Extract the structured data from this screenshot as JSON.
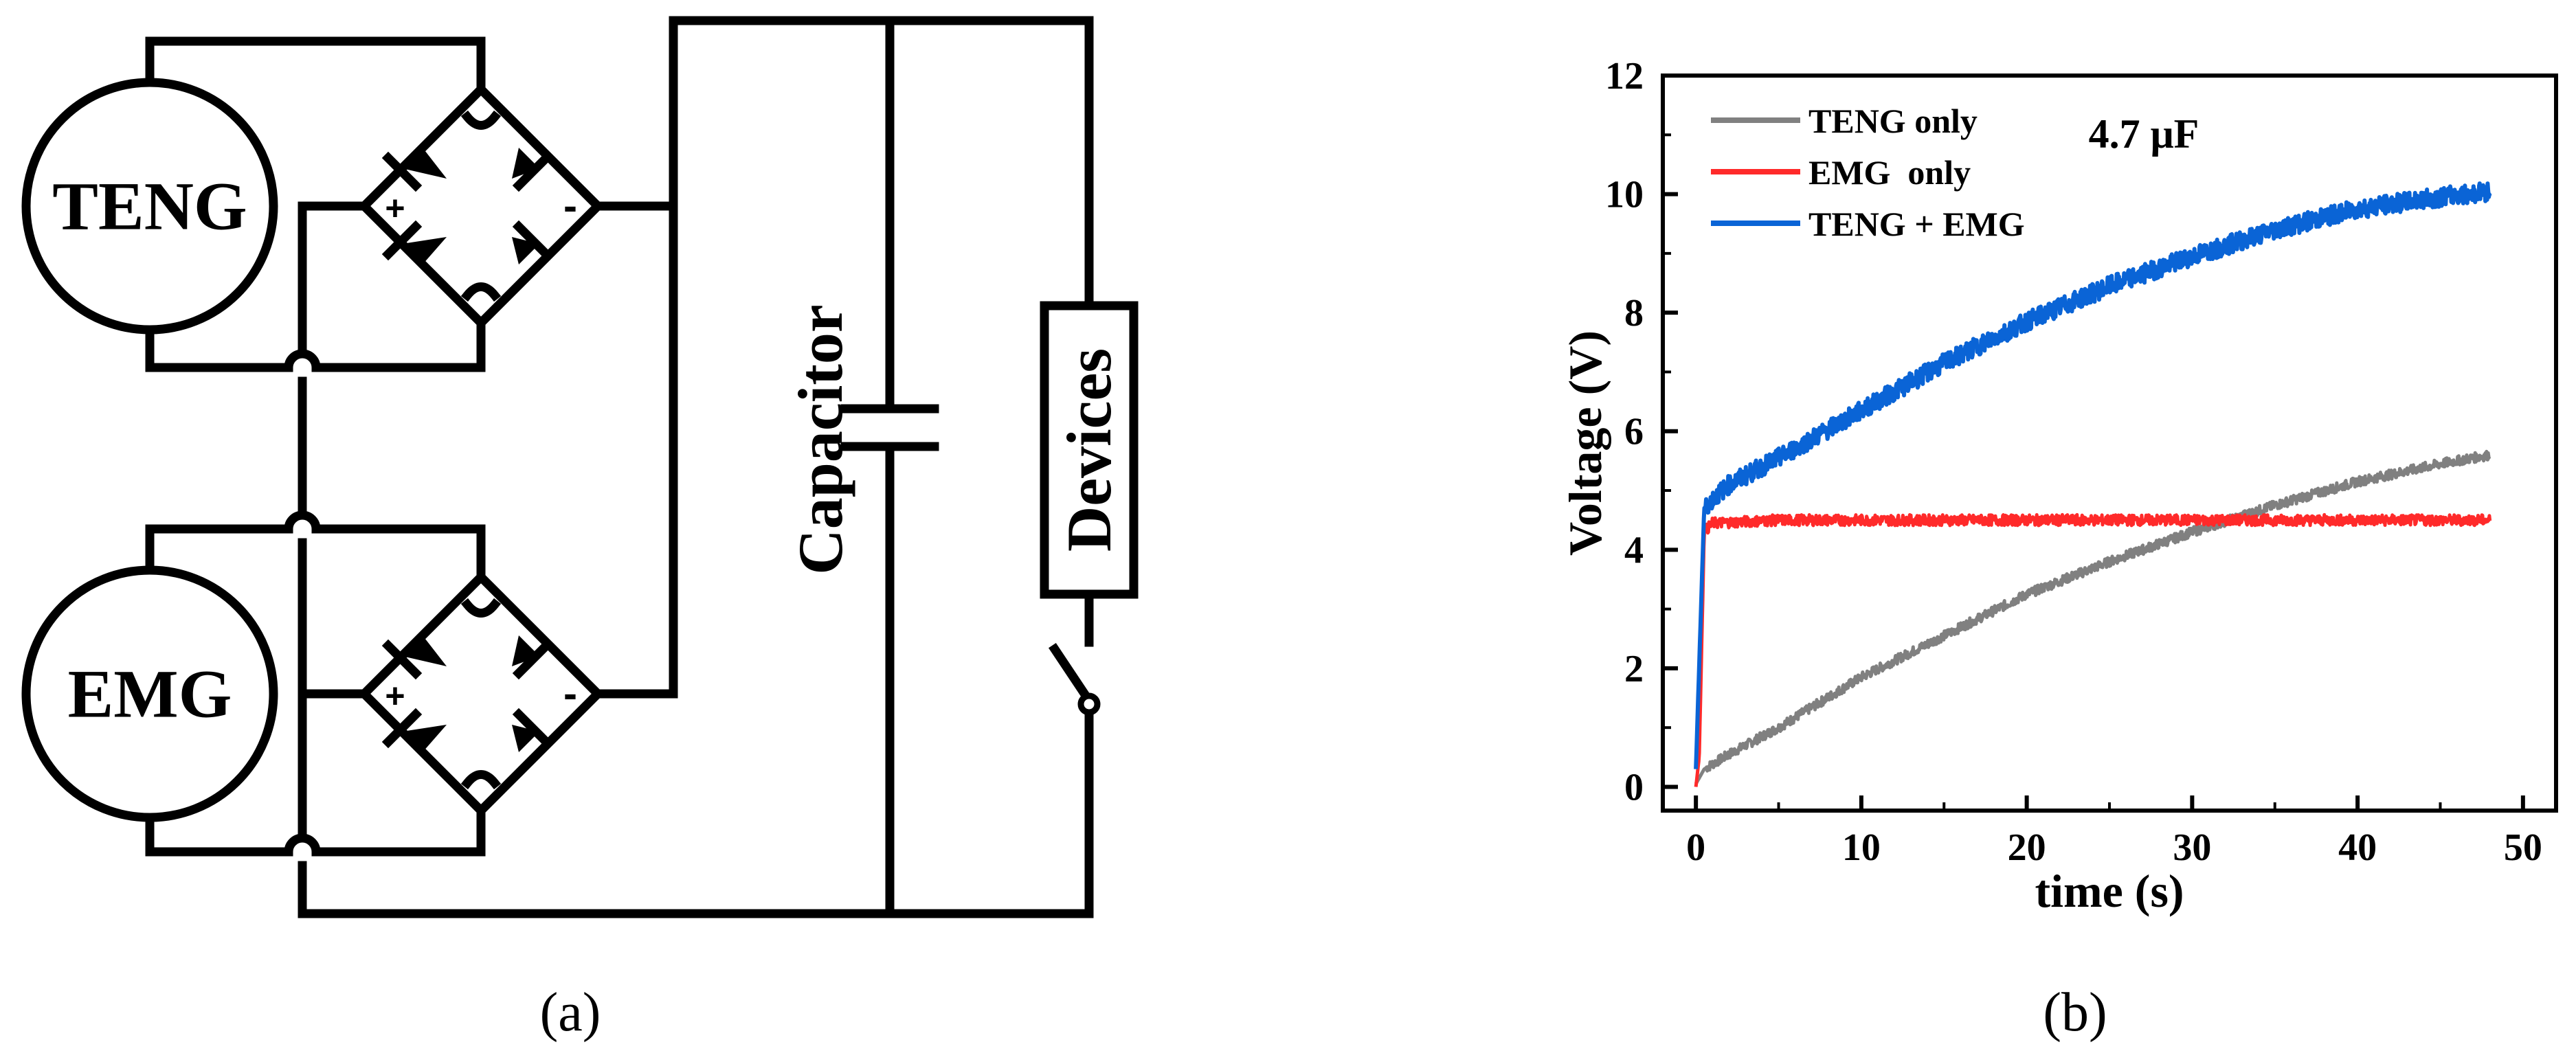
{
  "panel_a": {
    "caption": "(a)",
    "sources": [
      {
        "label": "TENG"
      },
      {
        "label": "EMG"
      }
    ],
    "bridge_signs": {
      "plus": "+",
      "minus": "-"
    },
    "capacitor_label": "Capacitor",
    "load_label": "Devices"
  },
  "panel_b": {
    "caption": "(b)",
    "annotation": "4.7 μF"
  },
  "chart_data": {
    "type": "line",
    "xlabel": "time (s)",
    "ylabel": "Voltage (V)",
    "xlim": [
      -2,
      52
    ],
    "ylim": [
      -0.4,
      12
    ],
    "xticks": [
      0,
      10,
      20,
      30,
      40,
      50
    ],
    "yticks": [
      0,
      2,
      4,
      6,
      8,
      10,
      12
    ],
    "grid": false,
    "legend_position": "top-left",
    "series": [
      {
        "name": "TENG only",
        "color": "#808080",
        "x": [
          0,
          0.5,
          2,
          5,
          10,
          15,
          20,
          25,
          30,
          35,
          40,
          45,
          48
        ],
        "y": [
          0.05,
          0.3,
          0.55,
          1.0,
          1.85,
          2.55,
          3.25,
          3.8,
          4.3,
          4.75,
          5.15,
          5.45,
          5.6
        ]
      },
      {
        "name": "EMG  only",
        "color": "#ff2a2a",
        "x": [
          0,
          0.2,
          0.5,
          1,
          5,
          10,
          20,
          30,
          40,
          48
        ],
        "y": [
          0,
          0.5,
          4.3,
          4.45,
          4.5,
          4.5,
          4.5,
          4.5,
          4.5,
          4.5
        ]
      },
      {
        "name": "TENG + EMG",
        "color": "#0a64d6",
        "x": [
          0,
          0.5,
          1,
          2,
          5,
          10,
          15,
          20,
          25,
          30,
          35,
          40,
          45,
          48
        ],
        "y": [
          0.3,
          4.7,
          4.85,
          5.1,
          5.55,
          6.35,
          7.15,
          7.85,
          8.45,
          8.95,
          9.4,
          9.75,
          9.95,
          10.05
        ]
      }
    ]
  }
}
